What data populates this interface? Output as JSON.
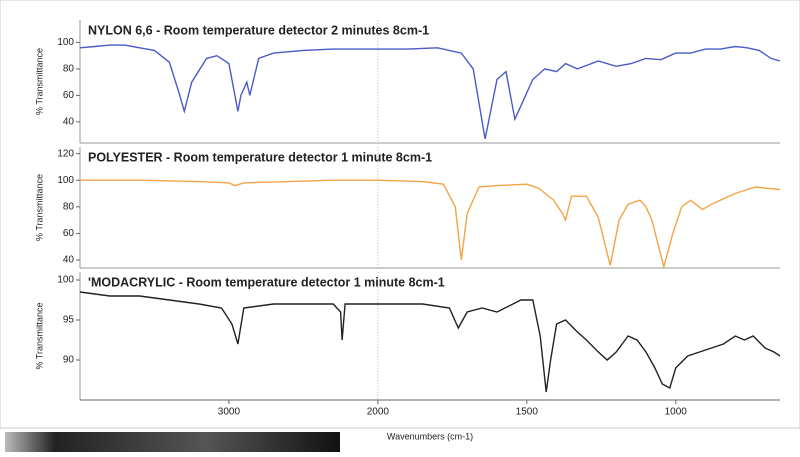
{
  "chart_data": [
    {
      "type": "line",
      "title": "NYLON 6,6 - Room temperature detector 2 minutes 8cm-1",
      "ylabel": "% Transmittance",
      "color": "#4a5bc8",
      "xlim": [
        4000,
        650
      ],
      "xscale_break": 2000,
      "xscale_factor": 2,
      "x": [
        4000,
        3900,
        3800,
        3700,
        3600,
        3500,
        3400,
        3330,
        3300,
        3250,
        3150,
        3080,
        3000,
        2940,
        2920,
        2880,
        2860,
        2800,
        2700,
        2500,
        2300,
        2100,
        2000,
        1900,
        1800,
        1720,
        1680,
        1640,
        1600,
        1570,
        1540,
        1500,
        1480,
        1440,
        1400,
        1370,
        1330,
        1260,
        1200,
        1150,
        1100,
        1050,
        1000,
        950,
        900,
        850,
        800,
        760,
        720,
        680,
        650
      ],
      "values": [
        96,
        97,
        98,
        98,
        96,
        94,
        85,
        60,
        48,
        70,
        88,
        90,
        84,
        48,
        60,
        70,
        60,
        88,
        92,
        94,
        95,
        95,
        95,
        95,
        96,
        92,
        80,
        27,
        72,
        78,
        42,
        62,
        72,
        80,
        78,
        84,
        80,
        86,
        82,
        84,
        88,
        87,
        92,
        92,
        95,
        95,
        97,
        96,
        94,
        88,
        86
      ],
      "ylim": [
        24,
        117
      ],
      "yticks": [
        40,
        60,
        80,
        100
      ]
    },
    {
      "type": "line",
      "title": "POLYESTER - Room temperature detector 1 minute 8cm-1",
      "ylabel": "% Transmittance",
      "color": "#f5a347",
      "xlim": [
        4000,
        650
      ],
      "xscale_break": 2000,
      "xscale_factor": 2,
      "x": [
        4000,
        3600,
        3200,
        3000,
        2960,
        2900,
        2600,
        2300,
        2000,
        1850,
        1780,
        1740,
        1720,
        1700,
        1660,
        1600,
        1500,
        1460,
        1410,
        1380,
        1370,
        1350,
        1300,
        1260,
        1220,
        1190,
        1160,
        1120,
        1100,
        1080,
        1040,
        1010,
        980,
        950,
        910,
        880,
        850,
        800,
        760,
        730,
        700,
        650
      ],
      "values": [
        100,
        100,
        99,
        98,
        96,
        98,
        99,
        100,
        100,
        99,
        97,
        80,
        40,
        75,
        95,
        96,
        97,
        94,
        85,
        75,
        70,
        88,
        88,
        72,
        36,
        70,
        82,
        85,
        80,
        70,
        35,
        60,
        80,
        85,
        78,
        82,
        85,
        90,
        93,
        95,
        94,
        93
      ],
      "ylim": [
        34,
        125
      ],
      "yticks": [
        40,
        60,
        80,
        100,
        120
      ]
    },
    {
      "type": "line",
      "title": "'MODACRYLIC - Room temperature detector 1 minute 8cm-1",
      "ylabel": "% Transmittance",
      "color": "#222222",
      "xlabel": "Wavenumbers (cm-1)",
      "xlim": [
        4000,
        650
      ],
      "xscale_break": 2000,
      "xscale_factor": 2,
      "x": [
        4000,
        3800,
        3600,
        3400,
        3200,
        3050,
        2980,
        2940,
        2900,
        2700,
        2500,
        2300,
        2250,
        2240,
        2220,
        2100,
        2000,
        1850,
        1760,
        1730,
        1700,
        1650,
        1600,
        1520,
        1480,
        1455,
        1435,
        1420,
        1400,
        1370,
        1330,
        1300,
        1260,
        1230,
        1200,
        1160,
        1130,
        1100,
        1070,
        1045,
        1020,
        1000,
        960,
        920,
        880,
        840,
        800,
        770,
        740,
        700,
        670,
        650
      ],
      "values": [
        98.5,
        98,
        98,
        97.5,
        97,
        96.5,
        94.5,
        92,
        96.5,
        97,
        97,
        97,
        96,
        92.5,
        97,
        97,
        97,
        97,
        96.5,
        94,
        96,
        96.5,
        96,
        97.5,
        97.5,
        93,
        86,
        90,
        94.5,
        95,
        93.5,
        92.5,
        91,
        90,
        91,
        93,
        92.5,
        91,
        89,
        87,
        86.5,
        89,
        90.5,
        91,
        91.5,
        92,
        93,
        92.5,
        93,
        91.5,
        91,
        90.5
      ],
      "ylim": [
        85,
        101
      ],
      "yticks": [
        90,
        95,
        100
      ],
      "xticks": [
        3000,
        2000,
        1500,
        1000
      ]
    }
  ]
}
